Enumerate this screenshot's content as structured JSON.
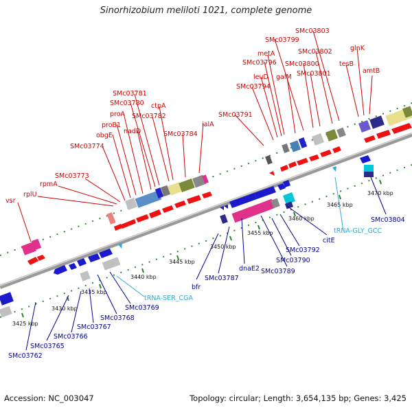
{
  "title": "Sinorhizobium meliloti 1021, complete genome",
  "footer": {
    "accession": "Accession: NC_003047",
    "stats": "Topology: circular; Length: 3,654,135 bp; Genes: 3,425"
  },
  "colors": {
    "forward_label": "#cc0000",
    "reverse_label": "#00008b",
    "rna_label": "#33aacc",
    "backbone": "#999999",
    "tick": "#228822"
  },
  "scale_labels": [
    "3425 kbp",
    "3430 kbp",
    "3435 kbp",
    "3440 kbp",
    "3445 kbp",
    "3450 kbp",
    "3455 kbp",
    "3460 kbp",
    "3465 kbp",
    "3470 kbp"
  ],
  "forward_labels": [
    "vsr",
    "rplU",
    "rpmA",
    "SMc03773",
    "SMc03774",
    "obgE",
    "proB1",
    "proA",
    "nadD",
    "SMc03780",
    "SMc03781",
    "SMc03782",
    "ctpA",
    "SMc03784",
    "ialA",
    "SMc03791",
    "SMc03794",
    "leuD",
    "SMc03796",
    "metA",
    "galM",
    "SMc03799",
    "SMc03800",
    "SMc03801",
    "SMc03802",
    "SMc03803",
    "tesB",
    "glnK",
    "amtB"
  ],
  "reverse_labels": [
    "SMc03762",
    "SMc03765",
    "SMc03766",
    "SMc03767",
    "SMc03768",
    "SMc03769",
    "bfr",
    "SMc03787",
    "dnaE2",
    "SMc03789",
    "SMc03790",
    "SMc03792",
    "citE",
    "SMc03804"
  ],
  "rna_labels": [
    "tRNA-SER_CGA",
    "tRNA-GLY_GCC"
  ]
}
